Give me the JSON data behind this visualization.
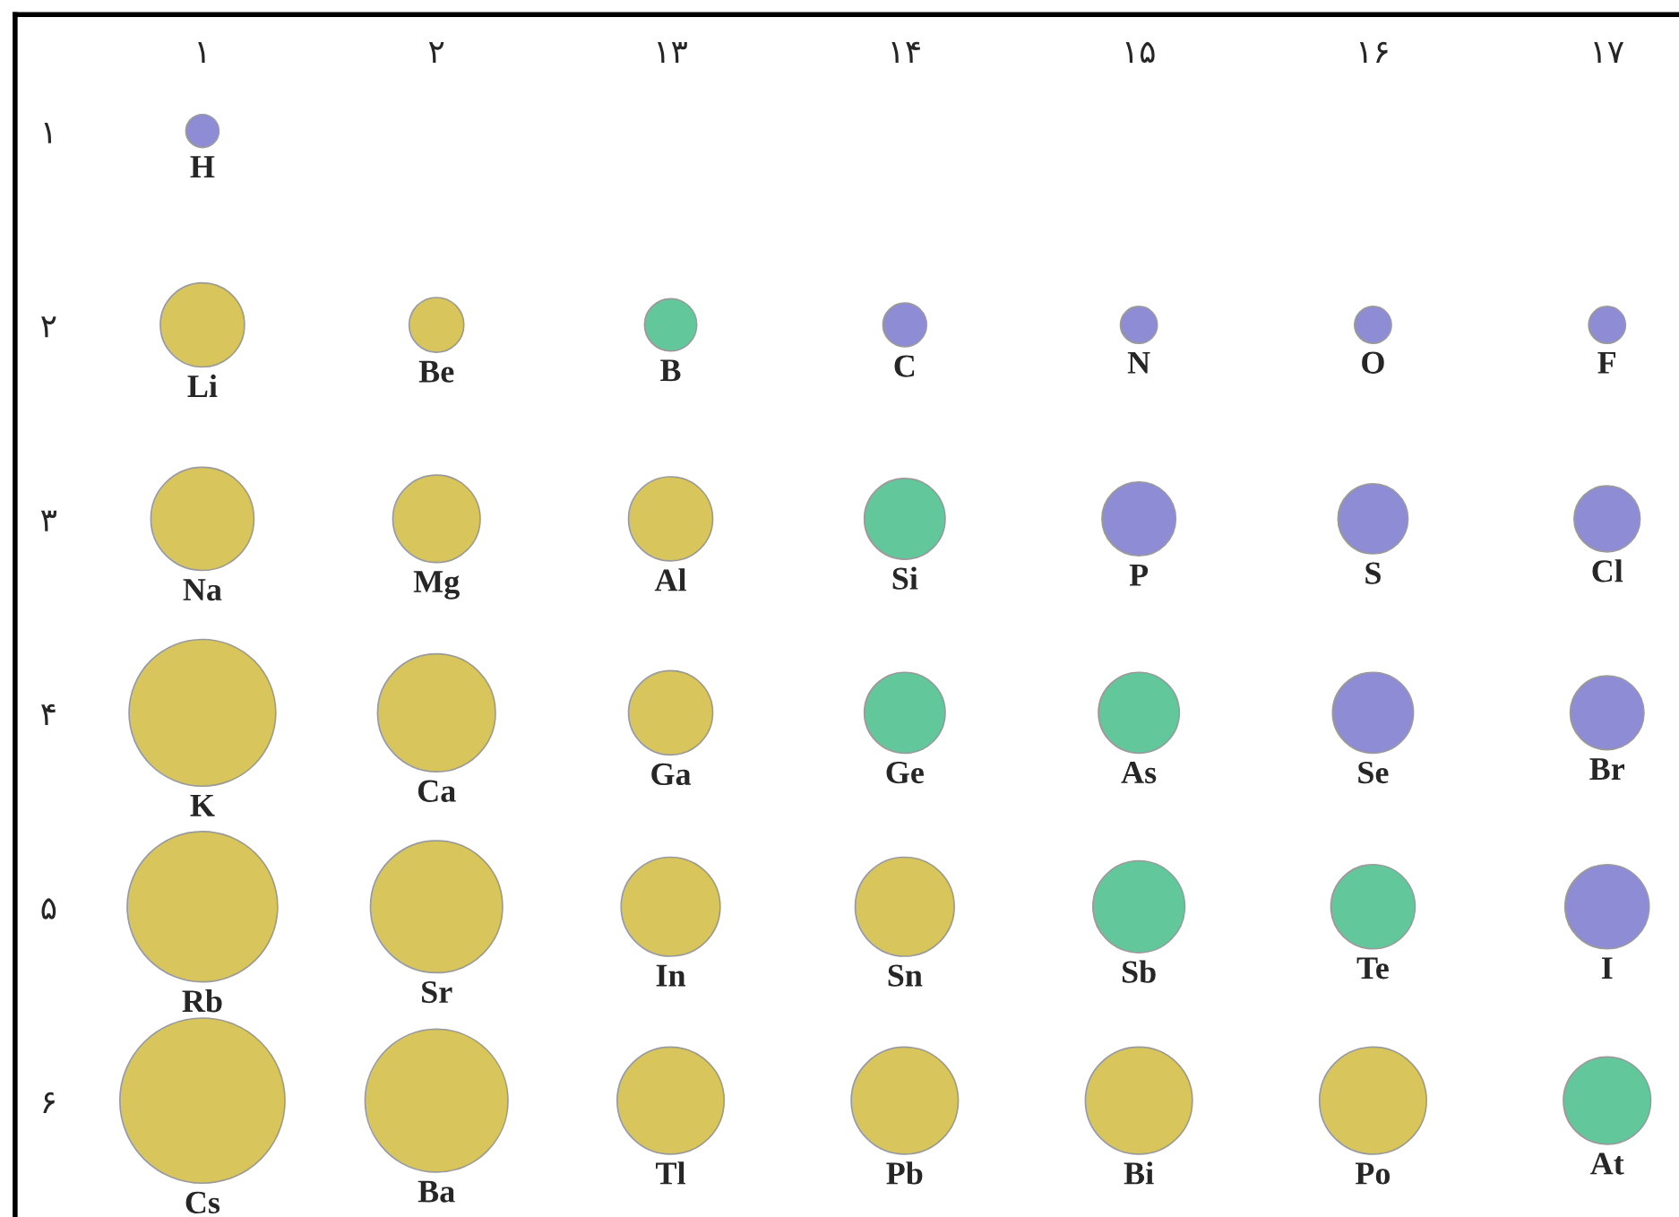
{
  "chart_data": {
    "type": "bubble",
    "categories": [
      "۱",
      "۲",
      "۱۳",
      "۱۴",
      "۱۵",
      "۱۶",
      "۱۷"
    ],
    "ylim": [
      6.6,
      0.4
    ],
    "yticks": [
      {
        "value": 1,
        "label": "۱"
      },
      {
        "value": 2,
        "label": "۲"
      },
      {
        "value": 3,
        "label": "۳"
      },
      {
        "value": 4,
        "label": "۴"
      },
      {
        "value": 5,
        "label": "۵"
      },
      {
        "value": 6,
        "label": "۶"
      }
    ],
    "grid": false,
    "legend": false,
    "series": [
      {
        "x": [
          "۱",
          "۱",
          "۲",
          "۱۳",
          "۱۴",
          "۱۵",
          "۱۶",
          "۱۷",
          "۱",
          "۲",
          "۱۳",
          "۱۴",
          "۱۵",
          "۱۶",
          "۱۷",
          "۱",
          "۲",
          "۱۳",
          "۱۴",
          "۱۵",
          "۱۶",
          "۱۷",
          "۱",
          "۲",
          "۱۳",
          "۱۴",
          "۱۵",
          "۱۶",
          "۱۷",
          "۱",
          "۲",
          "۱۳",
          "۱۴",
          "۱۵",
          "۱۶",
          "۱۷"
        ],
        "values": [
          1,
          2,
          2,
          2,
          2,
          2,
          2,
          2,
          3,
          3,
          3,
          3,
          3,
          3,
          3,
          4,
          4,
          4,
          4,
          4,
          4,
          4,
          5,
          5,
          5,
          5,
          5,
          5,
          5,
          6,
          6,
          6,
          6,
          6,
          6,
          6
        ],
        "sizes": [
          0.04,
          0.26,
          0.11,
          0.1,
          0.07,
          0.05,
          0.05,
          0.05,
          0.39,
          0.28,
          0.26,
          0.24,
          0.2,
          0.18,
          0.16,
          0.79,
          0.51,
          0.26,
          0.24,
          0.24,
          0.24,
          0.2,
          0.83,
          0.64,
          0.36,
          0.36,
          0.31,
          0.26,
          0.26,
          1,
          0.75,
          0.42,
          0.42,
          0.42,
          0.42,
          0.28
        ],
        "colors": [
          "#8f8cd6",
          "#d8c65c",
          "#d8c65c",
          "#62c79b",
          "#8f8cd6",
          "#8f8cd6",
          "#8f8cd6",
          "#8f8cd6",
          "#d8c65c",
          "#d8c65c",
          "#d8c65c",
          "#62c79b",
          "#8f8cd6",
          "#8f8cd6",
          "#8f8cd6",
          "#d8c65c",
          "#d8c65c",
          "#d8c65c",
          "#62c79b",
          "#62c79b",
          "#8f8cd6",
          "#8f8cd6",
          "#d8c65c",
          "#d8c65c",
          "#d8c65c",
          "#d8c65c",
          "#62c79b",
          "#62c79b",
          "#8f8cd6",
          "#d8c65c",
          "#d8c65c",
          "#d8c65c",
          "#d8c65c",
          "#d8c65c",
          "#d8c65c",
          "#62c79b"
        ],
        "value_labels": [
          "H",
          "Li",
          "Be",
          "B",
          "C",
          "N",
          "O",
          "F",
          "Na",
          "Mg",
          "Al",
          "Si",
          "P",
          "S",
          "Cl",
          "K",
          "Ca",
          "Ga",
          "Ge",
          "As",
          "Se",
          "Br",
          "Rb",
          "Sr",
          "In",
          "Sn",
          "Sb",
          "Te",
          "I",
          "Cs",
          "Ba",
          "Tl",
          "Pb",
          "Bi",
          "Po",
          "At"
        ]
      }
    ]
  }
}
